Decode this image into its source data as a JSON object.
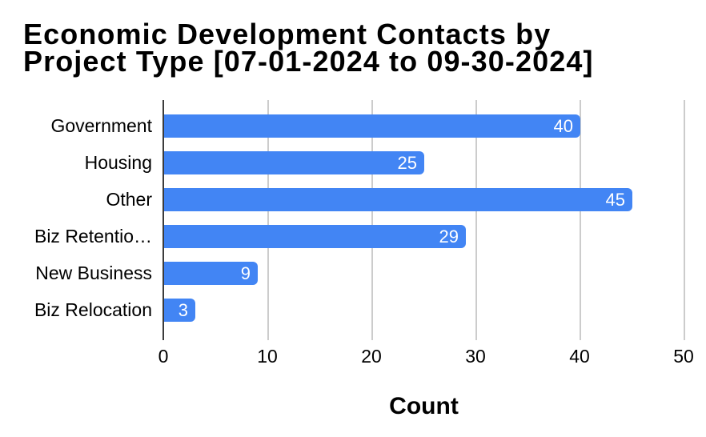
{
  "title": {
    "line1": "Economic Development Contacts by",
    "line2": "Project Type [07-01-2024 to 09-30-2024]"
  },
  "chart_data": {
    "type": "bar",
    "orientation": "horizontal",
    "title": "Economic Development Contacts by Project Type [07-01-2024 to 09-30-2024]",
    "categories": [
      "Government",
      "Housing",
      "Other",
      "Biz Retentio…",
      "New Business",
      "Biz Relocation"
    ],
    "values": [
      40,
      25,
      45,
      29,
      9,
      3
    ],
    "value_labels": [
      "40",
      "25",
      "45",
      "29",
      "9",
      "3"
    ],
    "xlabel": "Count",
    "ylabel": "",
    "xlim": [
      0,
      50
    ],
    "xticks": [
      0,
      10,
      20,
      30,
      40,
      50
    ],
    "grid": true,
    "legend": "none",
    "colors": {
      "bar": "#4285f4",
      "bar_value_text": "#ffffff",
      "gridline": "#cccccc",
      "axis": "#3c3c3c",
      "text": "#000000"
    }
  }
}
